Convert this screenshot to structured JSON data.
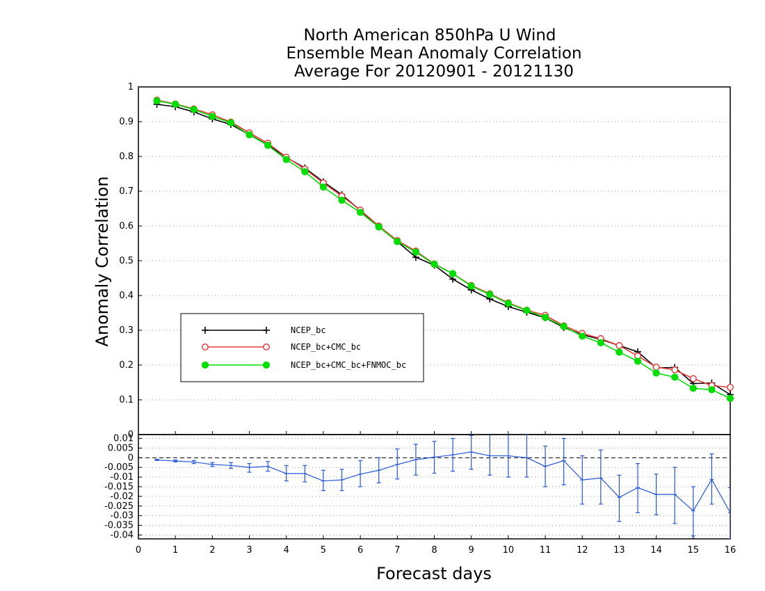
{
  "title_lines": [
    "North American 850hPa U Wind",
    "Ensemble Mean Anomaly Correlation",
    "Average For 20120901 - 20121130"
  ],
  "xlabel": "Forecast days",
  "ylabel": "Anomaly Correlation",
  "colors": {
    "NCEP_bc": "#000000",
    "NCEP_bc+CMC_bc": "#e83c3c",
    "NCEP_bc+CMC_bc+FNMOC_bc": "#00dd00",
    "diff": "#2255dd",
    "axis": "#000000",
    "grid": "#999999"
  },
  "chart_data": [
    {
      "type": "line",
      "xlim": [
        0,
        16
      ],
      "ylim": [
        0,
        1
      ],
      "x_ticks": [
        "0",
        "1",
        "2",
        "3",
        "4",
        "5",
        "6",
        "7",
        "8",
        "9",
        "10",
        "11",
        "12",
        "13",
        "14",
        "15",
        "16"
      ],
      "y_ticks": [
        "0",
        "0.1",
        "0.2",
        "0.3",
        "0.4",
        "0.5",
        "0.6",
        "0.7",
        "0.8",
        "0.9",
        "1"
      ],
      "grid": "horizontal dotted",
      "legend_placement": "left-lower",
      "x": [
        0.5,
        1,
        1.5,
        2,
        2.5,
        3,
        3.5,
        4,
        4.5,
        5,
        5.5,
        6,
        6.5,
        7,
        7.5,
        8,
        8.5,
        9,
        9.5,
        10,
        10.5,
        11,
        11.5,
        12,
        12.5,
        13,
        13.5,
        14,
        14.5,
        15,
        15.5,
        16
      ],
      "series": [
        {
          "name": "NCEP_bc",
          "marker": "plus",
          "values": [
            0.95,
            0.943,
            0.928,
            0.908,
            0.892,
            0.863,
            0.833,
            0.797,
            0.767,
            0.727,
            0.69,
            0.645,
            0.598,
            0.555,
            0.51,
            0.487,
            0.447,
            0.416,
            0.39,
            0.368,
            0.352,
            0.336,
            0.308,
            0.287,
            0.274,
            0.256,
            0.238,
            0.192,
            0.193,
            0.147,
            0.148,
            0.115
          ]
        },
        {
          "name": "NCEP_bc+CMC_bc",
          "marker": "open-circle",
          "values": [
            0.962,
            0.951,
            0.937,
            0.92,
            0.899,
            0.868,
            0.838,
            0.798,
            0.764,
            0.724,
            0.686,
            0.646,
            0.6,
            0.558,
            0.528,
            0.491,
            0.463,
            0.429,
            0.405,
            0.379,
            0.358,
            0.343,
            0.313,
            0.291,
            0.276,
            0.256,
            0.226,
            0.194,
            0.186,
            0.161,
            0.141,
            0.136
          ]
        },
        {
          "name": "NCEP_bc+CMC_bc+FNMOC_bc",
          "marker": "filled-circle",
          "values": [
            0.96,
            0.95,
            0.935,
            0.915,
            0.897,
            0.862,
            0.832,
            0.791,
            0.756,
            0.712,
            0.674,
            0.639,
            0.597,
            0.555,
            0.525,
            0.49,
            0.463,
            0.427,
            0.403,
            0.377,
            0.357,
            0.337,
            0.311,
            0.283,
            0.264,
            0.237,
            0.211,
            0.177,
            0.165,
            0.133,
            0.129,
            0.104
          ]
        }
      ]
    },
    {
      "type": "line",
      "xlim": [
        0,
        16
      ],
      "ylim": [
        -0.042,
        0.012
      ],
      "x_ticks": [
        "0",
        "1",
        "2",
        "3",
        "4",
        "5",
        "6",
        "7",
        "8",
        "9",
        "10",
        "11",
        "12",
        "13",
        "14",
        "15",
        "16"
      ],
      "y_ticks": [
        "0.01",
        "0.005",
        "0",
        "-0.005",
        "-0.01",
        "-0.015",
        "-0.02",
        "-0.025",
        "-0.03",
        "-0.035",
        "-0.04"
      ],
      "y_tick_values": [
        0.01,
        0.005,
        0,
        -0.005,
        -0.01,
        -0.015,
        -0.02,
        -0.025,
        -0.03,
        -0.035,
        -0.04
      ],
      "top_label": "0",
      "grid": "horizontal dotted",
      "zero_line": "dashed",
      "x": [
        0.5,
        1,
        1.5,
        2,
        2.5,
        3,
        3.5,
        4,
        4.5,
        5,
        5.5,
        6,
        6.5,
        7,
        7.5,
        8,
        8.5,
        9,
        9.5,
        10,
        10.5,
        11,
        11.5,
        12,
        12.5,
        13,
        13.5,
        14,
        14.5,
        15,
        15.5,
        16
      ],
      "series": [
        {
          "values": [
            -0.0012,
            -0.0017,
            -0.0022,
            -0.0035,
            -0.004,
            -0.005,
            -0.0045,
            -0.0082,
            -0.0082,
            -0.012,
            -0.0115,
            -0.0085,
            -0.0065,
            -0.0035,
            -0.001,
            0.0003,
            0.0015,
            0.003,
            0.001,
            0.001,
            0.0,
            -0.0045,
            -0.0015,
            -0.0115,
            -0.0105,
            -0.0205,
            -0.0155,
            -0.019,
            -0.019,
            -0.0275,
            -0.0112,
            -0.0285
          ],
          "error_low": [
            -0.0014,
            -0.0022,
            -0.003,
            -0.0045,
            -0.0055,
            -0.0075,
            -0.007,
            -0.012,
            -0.0125,
            -0.017,
            -0.017,
            -0.015,
            -0.013,
            -0.011,
            -0.009,
            -0.008,
            -0.007,
            -0.006,
            -0.009,
            -0.01,
            -0.01,
            -0.015,
            -0.014,
            -0.024,
            -0.024,
            -0.033,
            -0.0285,
            -0.0295,
            -0.034,
            -0.0405,
            -0.024,
            -0.042
          ],
          "error_high": [
            -0.0008,
            -0.0012,
            -0.0014,
            -0.0025,
            -0.0025,
            -0.003,
            -0.002,
            -0.004,
            -0.004,
            -0.0065,
            -0.006,
            -0.0015,
            0.0,
            0.0045,
            0.007,
            0.0085,
            0.01,
            0.0115,
            0.0125,
            0.0125,
            0.012,
            0.006,
            0.01,
            0.001,
            0.004,
            -0.009,
            -0.003,
            -0.0085,
            -0.005,
            -0.015,
            0.002,
            -0.0155
          ]
        }
      ]
    }
  ]
}
